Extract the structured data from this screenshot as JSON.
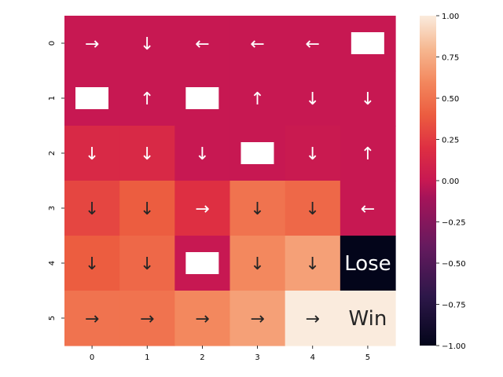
{
  "chart_data": {
    "type": "heatmap",
    "title": "",
    "xlabel": "",
    "ylabel": "",
    "x_tick_labels": [
      "0",
      "1",
      "2",
      "3",
      "4",
      "5"
    ],
    "y_tick_labels": [
      "0",
      "1",
      "2",
      "3",
      "4",
      "5"
    ],
    "values": [
      [
        0.0,
        0.0,
        0.0,
        0.0,
        0.0,
        0.0
      ],
      [
        0.0,
        0.0,
        0.0,
        0.0,
        0.0,
        0.0
      ],
      [
        0.15,
        0.15,
        0.0,
        0.0,
        0.02,
        0.0
      ],
      [
        0.3,
        0.4,
        0.2,
        0.5,
        0.45,
        0.0
      ],
      [
        0.4,
        0.45,
        0.0,
        0.6,
        0.7,
        -1.0
      ],
      [
        0.5,
        0.5,
        0.6,
        0.7,
        1.0,
        1.0
      ]
    ],
    "cell_annotations": [
      [
        "→",
        "↓",
        "←",
        "←",
        "←",
        ""
      ],
      [
        "",
        "↑",
        "",
        "↑",
        "↓",
        "↓"
      ],
      [
        "↓",
        "↓",
        "↓",
        "",
        "↓",
        "↑"
      ],
      [
        "↓",
        "↓",
        "→",
        "↓",
        "↓",
        "←"
      ],
      [
        "↓",
        "↓",
        "",
        "↓",
        "↓",
        "Lose"
      ],
      [
        "→",
        "→",
        "→",
        "→",
        "→",
        "Win"
      ]
    ],
    "blocked_cells": [
      [
        0,
        5
      ],
      [
        1,
        0
      ],
      [
        1,
        2
      ],
      [
        2,
        3
      ],
      [
        4,
        2
      ]
    ],
    "colorbar": {
      "vmin": -1.0,
      "vmax": 1.0,
      "ticks": [
        1.0,
        0.75,
        0.5,
        0.25,
        0.0,
        -0.25,
        -0.5,
        -0.75,
        -1.0
      ],
      "tick_labels": [
        "1.00",
        "0.75",
        "0.50",
        "0.25",
        "0.00",
        "−0.25",
        "−0.50",
        "−0.75",
        "−1.00"
      ]
    },
    "colormap": "rocket",
    "grid": false,
    "legend": "colorbar-right"
  }
}
